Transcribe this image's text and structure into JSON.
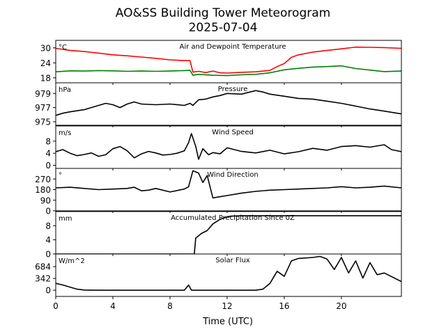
{
  "figure": {
    "title_line1": "AO&SS Building Tower Meteorogram",
    "title_line2": "2025-07-04",
    "xlabel": "Time (UTC)",
    "xticks": [
      0,
      4,
      8,
      12,
      16,
      20
    ],
    "xlim": [
      0,
      24.2
    ]
  },
  "chart_data": [
    {
      "type": "line",
      "title": "Air and Dewpoint Temperature",
      "unit": "°C",
      "ylim": [
        16,
        33
      ],
      "yticks": [
        18,
        24,
        30
      ],
      "series": [
        {
          "color": "#ff0000",
          "x": [
            0,
            1,
            2,
            3,
            4,
            5,
            6,
            7,
            8,
            9,
            9.4,
            9.6,
            10,
            10.5,
            11,
            11.5,
            12,
            13,
            14,
            15,
            15.5,
            16,
            16.5,
            17,
            18,
            19,
            20,
            21,
            22,
            23,
            24.2
          ],
          "y": [
            29.8,
            29.0,
            28.5,
            27.9,
            27.2,
            26.8,
            26.3,
            25.8,
            25.2,
            24.9,
            24.9,
            20.3,
            20.6,
            20.1,
            20.7,
            20.0,
            19.9,
            20.2,
            20.4,
            21.0,
            22.5,
            23.7,
            26.2,
            27.2,
            28.3,
            29.0,
            29.6,
            30.3,
            30.2,
            30.1,
            29.8
          ]
        },
        {
          "color": "#008000",
          "x": [
            0,
            1,
            2,
            3,
            4,
            5,
            6,
            7,
            8,
            9,
            9.4,
            9.6,
            10,
            11,
            12,
            13,
            14,
            15,
            16,
            17,
            18,
            19,
            20,
            21,
            22,
            23,
            24.2
          ],
          "y": [
            20.4,
            20.8,
            20.7,
            20.9,
            20.8,
            20.6,
            20.7,
            20.6,
            20.7,
            20.9,
            21.0,
            19.0,
            19.4,
            19.0,
            18.9,
            19.2,
            19.4,
            20.0,
            21.2,
            21.8,
            22.3,
            22.5,
            22.8,
            21.7,
            21.1,
            20.5,
            20.7
          ]
        }
      ]
    },
    {
      "type": "line",
      "title": "Pressure",
      "unit": "hPa",
      "ylim": [
        974.5,
        980.5
      ],
      "yticks": [
        975,
        977,
        979
      ],
      "series": [
        {
          "color": "#000000",
          "x": [
            0,
            0.5,
            1,
            2,
            3,
            3.5,
            4,
            4.5,
            5,
            5.5,
            6,
            7,
            8,
            9,
            9.4,
            9.6,
            10,
            10.5,
            11,
            11.5,
            12,
            13,
            14,
            14.5,
            15,
            16,
            17,
            18,
            19,
            20,
            21,
            22,
            23,
            24.2
          ],
          "y": [
            975.9,
            976.2,
            976.4,
            976.7,
            977.3,
            977.6,
            977.4,
            977.0,
            977.5,
            977.8,
            977.5,
            977.4,
            977.5,
            977.3,
            977.6,
            977.3,
            978.1,
            978.2,
            978.5,
            978.7,
            979.0,
            978.9,
            979.4,
            979.2,
            978.9,
            978.6,
            978.3,
            978.2,
            977.9,
            977.6,
            977.2,
            976.8,
            976.5,
            976.1
          ]
        }
      ]
    },
    {
      "type": "line",
      "title": "Wind Speed",
      "unit": "m/s",
      "ylim": [
        -1,
        13
      ],
      "yticks": [
        0,
        4,
        8
      ],
      "series": [
        {
          "color": "#000000",
          "x": [
            0,
            0.5,
            1,
            1.5,
            2,
            2.5,
            3,
            3.5,
            4,
            4.5,
            5,
            5.5,
            6,
            6.5,
            7,
            7.5,
            8,
            8.5,
            9,
            9.3,
            9.5,
            9.8,
            10,
            10.3,
            10.7,
            11,
            11.5,
            12,
            13,
            14,
            15,
            16,
            17,
            18,
            19,
            20,
            21,
            22,
            23,
            23.5,
            24.2
          ],
          "y": [
            4.5,
            5.2,
            4.0,
            3.2,
            3.6,
            4.1,
            3.0,
            3.5,
            5.5,
            6.2,
            4.8,
            2.5,
            3.8,
            4.6,
            4.1,
            3.4,
            3.6,
            4.0,
            4.8,
            7.5,
            10.5,
            6.2,
            2.0,
            5.5,
            3.5,
            4.2,
            3.8,
            5.8,
            4.6,
            4.1,
            5.0,
            3.8,
            4.5,
            5.6,
            5.0,
            6.2,
            6.5,
            6.0,
            6.8,
            5.2,
            4.5
          ]
        }
      ]
    },
    {
      "type": "line",
      "title": "Wind Direction",
      "unit": "°",
      "ylim": [
        0,
        360
      ],
      "yticks": [
        0,
        90,
        180,
        270
      ],
      "series": [
        {
          "color": "#000000",
          "x": [
            0,
            1,
            2,
            3,
            4,
            5,
            5.5,
            6,
            6.5,
            7,
            8,
            9,
            9.3,
            9.6,
            10,
            10.3,
            10.6,
            11,
            11.5,
            12,
            13,
            14,
            15,
            16,
            17,
            18,
            19,
            20,
            21,
            22,
            23,
            24.2
          ],
          "y": [
            195,
            200,
            190,
            180,
            185,
            190,
            200,
            170,
            175,
            190,
            160,
            185,
            205,
            340,
            320,
            240,
            300,
            110,
            120,
            130,
            150,
            165,
            175,
            180,
            185,
            190,
            195,
            205,
            195,
            200,
            210,
            195
          ]
        }
      ]
    },
    {
      "type": "line",
      "title": "Accumulated Precipitation Since 0Z",
      "unit": "mm",
      "ylim": [
        0,
        12
      ],
      "yticks": [
        0,
        4,
        8
      ],
      "series": [
        {
          "color": "#000000",
          "x": [
            0,
            9.7,
            9.8,
            10.2,
            10.6,
            11.0,
            11.5,
            12.0,
            12.3,
            13,
            24.2
          ],
          "y": [
            0,
            0,
            4.5,
            5.8,
            6.6,
            8.5,
            9.8,
            10.5,
            10.7,
            10.8,
            10.8
          ]
        }
      ]
    },
    {
      "type": "line",
      "title": "Solar Flux",
      "unit": "W/m^2",
      "ylim": [
        -180,
        1050
      ],
      "yticks": [
        0,
        342,
        684
      ],
      "series": [
        {
          "color": "#000000",
          "x": [
            0,
            0.5,
            1,
            1.5,
            2,
            3,
            4,
            6,
            8,
            9,
            9.3,
            9.5,
            10,
            11,
            12,
            13,
            14,
            14.5,
            15,
            15.5,
            16,
            16.5,
            17,
            18,
            18.5,
            19,
            19.5,
            20,
            20.5,
            21,
            21.5,
            22,
            22.5,
            23,
            24.2
          ],
          "y": [
            200,
            150,
            90,
            30,
            5,
            0,
            0,
            0,
            0,
            0,
            150,
            0,
            0,
            0,
            0,
            0,
            0,
            30,
            200,
            550,
            400,
            850,
            920,
            950,
            980,
            900,
            600,
            950,
            500,
            850,
            350,
            800,
            450,
            500,
            250
          ]
        }
      ]
    }
  ]
}
